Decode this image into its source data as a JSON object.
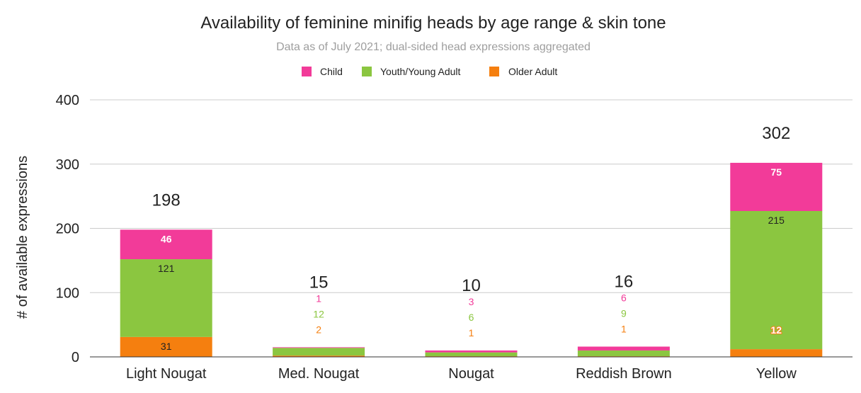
{
  "chart_data": {
    "type": "bar",
    "stacked": true,
    "title": "Availability of feminine minifig heads by age range & skin tone",
    "subtitle": "Data as of July 2021; dual-sided head expressions aggregated",
    "xlabel": "",
    "ylabel": "# of available expressions",
    "ylim": [
      0,
      400
    ],
    "yticks": [
      0,
      100,
      200,
      300,
      400
    ],
    "grid": true,
    "legend_position": "top",
    "categories": [
      "Light Nougat",
      "Med. Nougat",
      "Nougat",
      "Reddish Brown",
      "Yellow"
    ],
    "series": [
      {
        "name": "Child",
        "color": "#f23b99",
        "values": [
          46,
          1,
          3,
          6,
          75
        ]
      },
      {
        "name": "Youth/Young Adult",
        "color": "#8bc640",
        "values": [
          121,
          12,
          6,
          9,
          215
        ]
      },
      {
        "name": "Older Adult",
        "color": "#f57f0f",
        "values": [
          31,
          2,
          1,
          1,
          12
        ]
      }
    ],
    "totals": [
      198,
      15,
      10,
      16,
      302
    ]
  }
}
